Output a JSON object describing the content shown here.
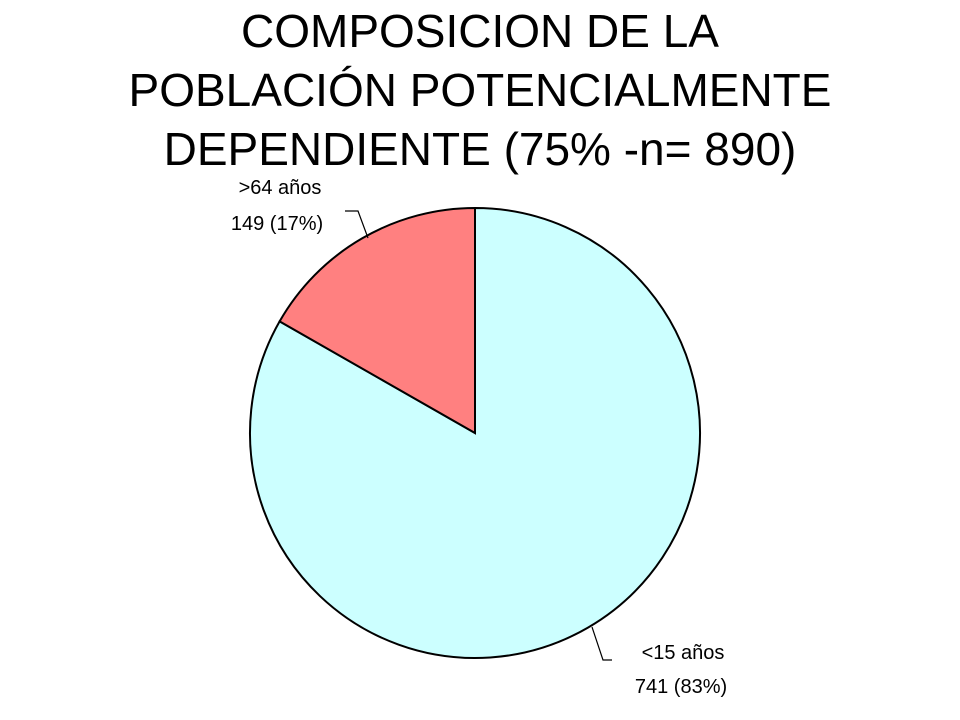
{
  "chart_data": {
    "type": "pie",
    "title_lines": [
      "COMPOSICION DE LA",
      "POBLACIÓN POTENCIALMENTE",
      "DEPENDIENTE (75% -n= 890)"
    ],
    "slices": [
      {
        "category": "<15 años",
        "value": 741,
        "value_label": "741 (83%)",
        "color": "#ccffff"
      },
      {
        "category": ">64 años",
        "value": 149,
        "value_label": "149 (17%)",
        "color": "#ff8080"
      }
    ],
    "start": "12 o'clock",
    "direction": "clockwise",
    "border_color": "#000000"
  }
}
